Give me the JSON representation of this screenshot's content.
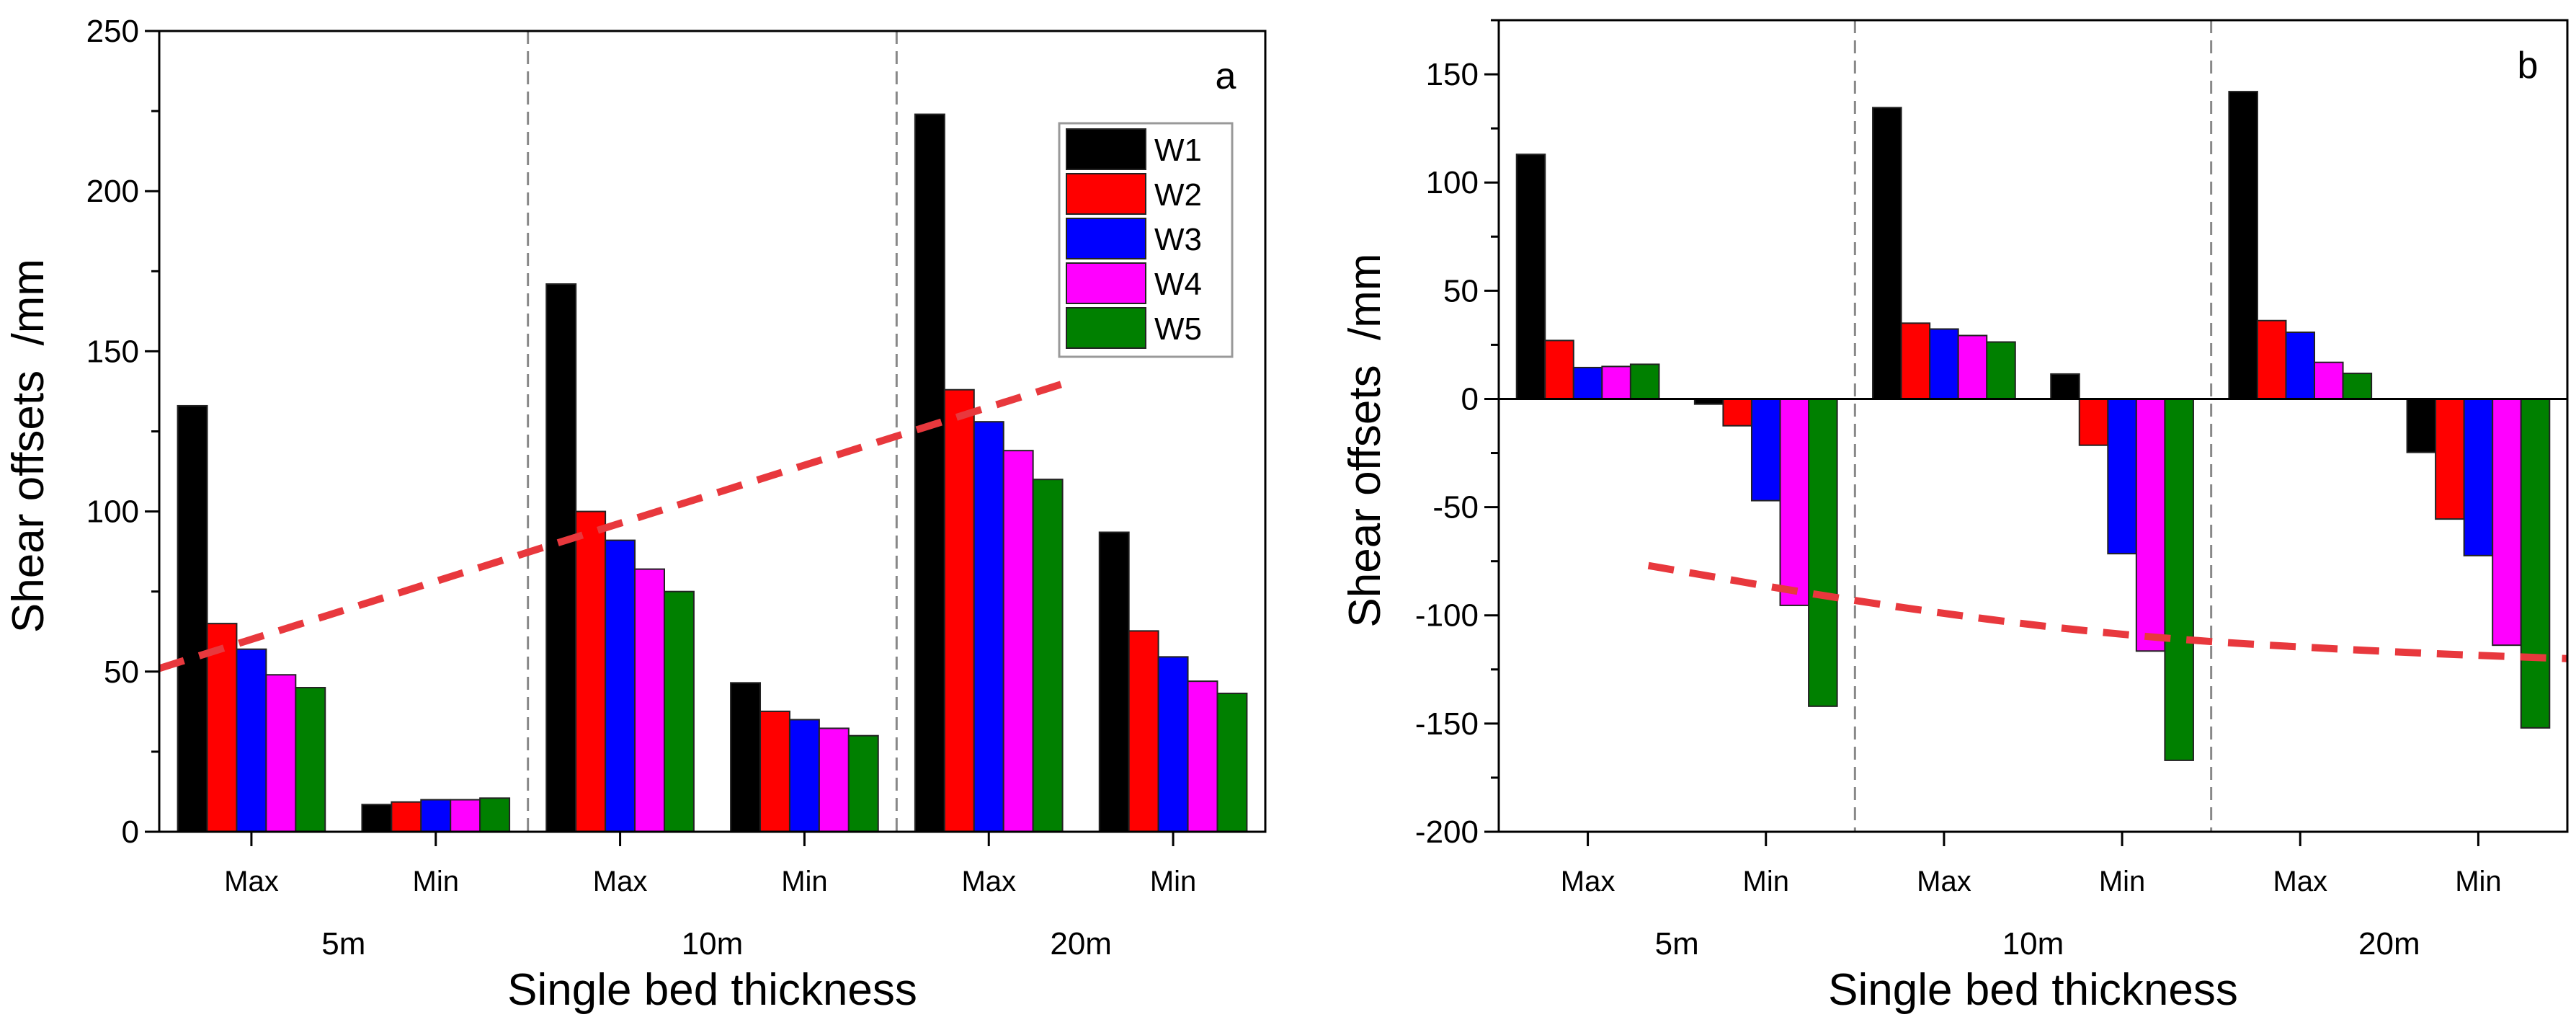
{
  "colors": {
    "W1": "#000000",
    "W2": "#ff0000",
    "W3": "#0000ff",
    "W4": "#ff00ff",
    "W5": "#008000",
    "trend": "#e8383d",
    "divider": "#888888"
  },
  "chart_data": [
    {
      "type": "bar",
      "panel_label": "a",
      "xlabel": "Single bed thickness",
      "ylabel": "Shear offsets  /mm",
      "ylim": [
        0,
        250
      ],
      "yticks": [
        0,
        50,
        100,
        150,
        200,
        250
      ],
      "categories": [
        "Max",
        "Min",
        "Max",
        "Min",
        "Max",
        "Min"
      ],
      "groups": [
        "5m",
        "10m",
        "20m"
      ],
      "legend": {
        "position": "top-right",
        "entries": [
          "W1",
          "W2",
          "W3",
          "W4",
          "W5"
        ]
      },
      "series": [
        {
          "name": "W1",
          "values": [
            133,
            8.5,
            171,
            46.5,
            224,
            93.5
          ]
        },
        {
          "name": "W2",
          "values": [
            65,
            9.3,
            100,
            37.6,
            138,
            62.7
          ]
        },
        {
          "name": "W3",
          "values": [
            57,
            10,
            91,
            35,
            128,
            54.6
          ]
        },
        {
          "name": "W4",
          "values": [
            49,
            10,
            82,
            32.3,
            119,
            47
          ]
        },
        {
          "name": "W5",
          "values": [
            45,
            10.5,
            75,
            30,
            110,
            43.2
          ]
        }
      ],
      "trend_line": {
        "style": "dashed",
        "points": [
          [
            -0.5,
            51
          ],
          [
            4.41,
            140
          ]
        ]
      }
    },
    {
      "type": "bar",
      "panel_label": "b",
      "xlabel": "Single bed thickness",
      "ylabel": "Shear offsets  /mm",
      "ylim": [
        -200,
        175
      ],
      "yticks": [
        -200,
        -150,
        -100,
        -50,
        0,
        50,
        100,
        150
      ],
      "categories": [
        "Max",
        "Min",
        "Max",
        "Min",
        "Max",
        "Min"
      ],
      "groups": [
        "5m",
        "10m",
        "20m"
      ],
      "series": [
        {
          "name": "W1",
          "values": [
            113,
            -2.4,
            134.6,
            11.5,
            142,
            -24.7
          ]
        },
        {
          "name": "W2",
          "values": [
            27,
            -12.4,
            35,
            -21.4,
            36.2,
            -55.5
          ]
        },
        {
          "name": "W3",
          "values": [
            14.5,
            -47,
            32.3,
            -71.5,
            30.8,
            -72.4
          ]
        },
        {
          "name": "W4",
          "values": [
            15,
            -95.4,
            29.3,
            -116.5,
            16.9,
            -113.8
          ]
        },
        {
          "name": "W5",
          "values": [
            16,
            -142,
            26.3,
            -167,
            11.8,
            -152
          ]
        }
      ],
      "trend_line": {
        "style": "dashed",
        "points": [
          [
            0.34,
            -77
          ],
          [
            1.6,
            -95
          ],
          [
            3.03,
            -110
          ],
          [
            4.5,
            -117
          ],
          [
            5.5,
            -120
          ]
        ]
      }
    }
  ]
}
